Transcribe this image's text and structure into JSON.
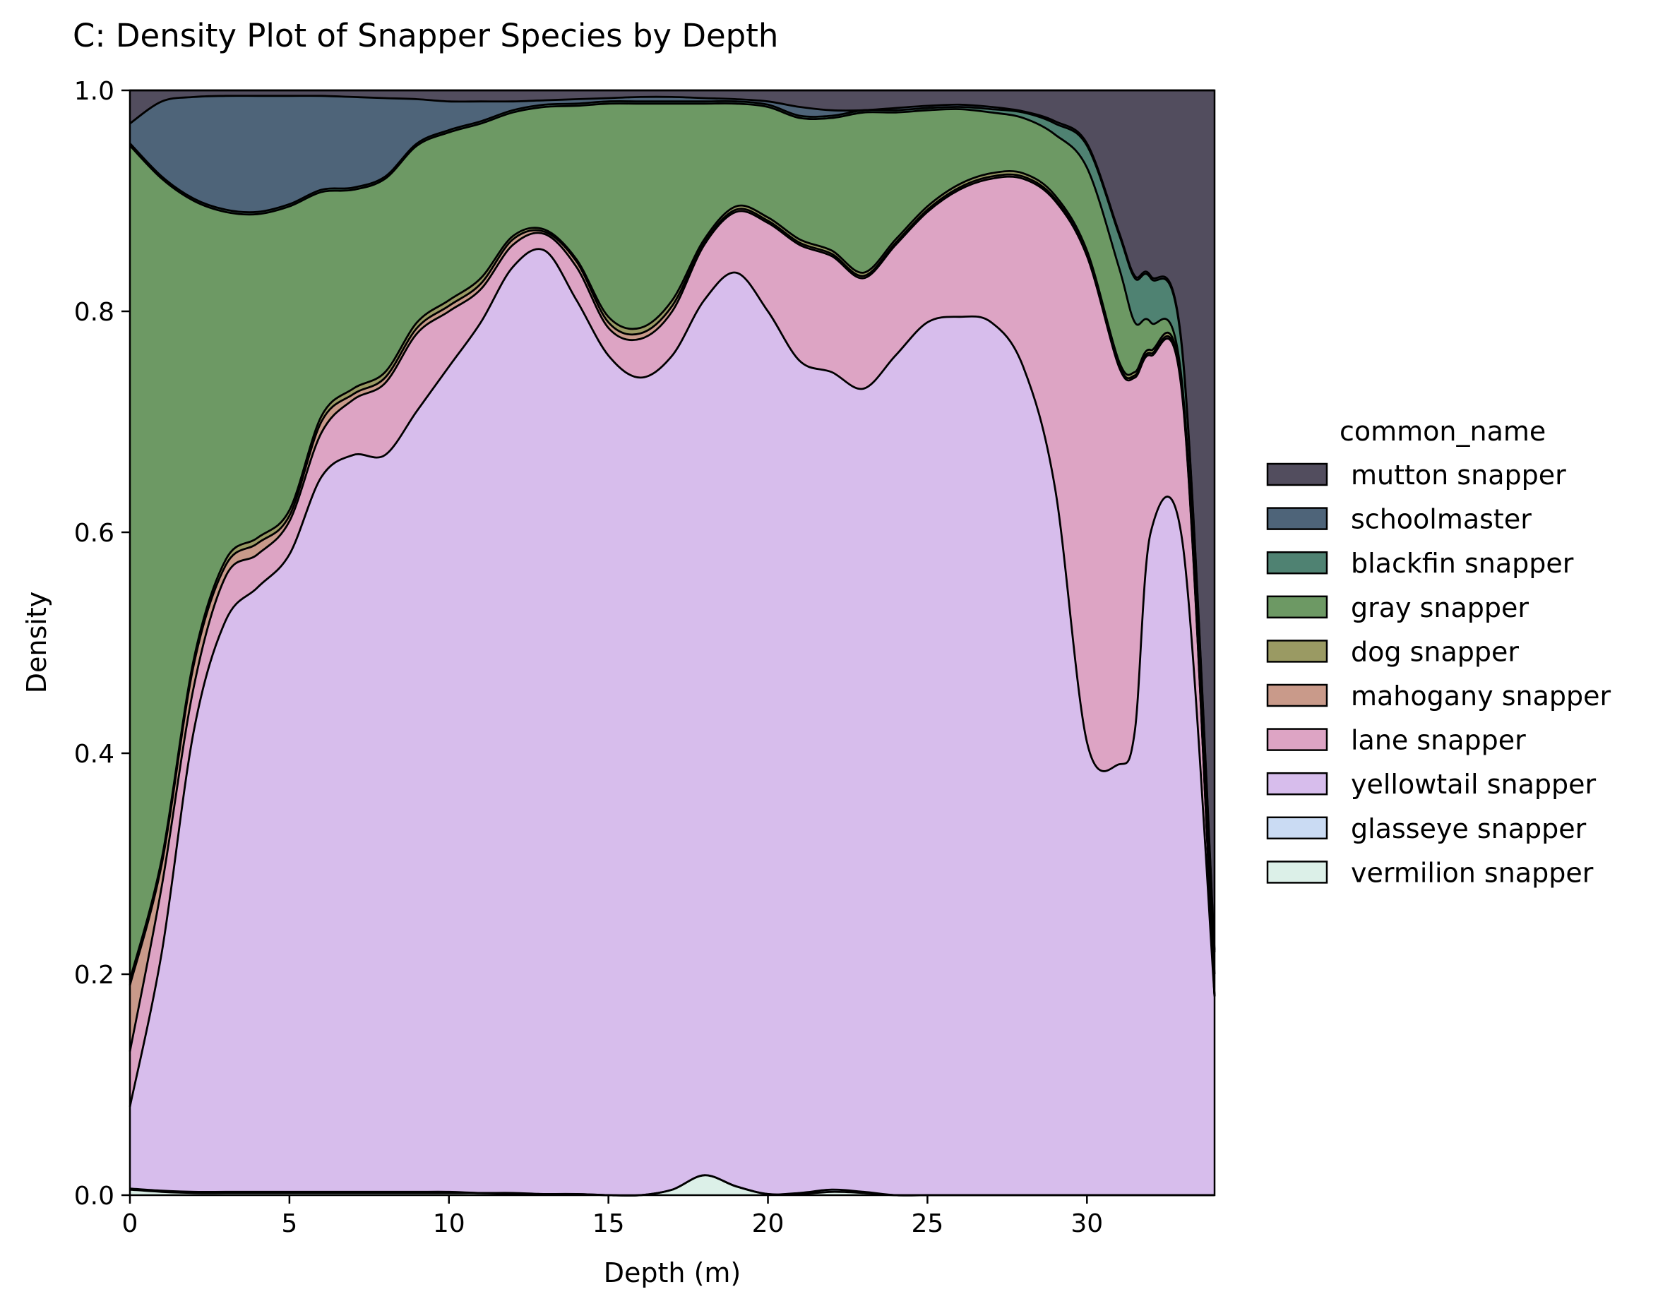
{
  "chart_data": {
    "type": "area",
    "stacked": true,
    "normalized": true,
    "title": "C: Density Plot of Snapper Species by Depth",
    "xlabel": "Depth (m)",
    "ylabel": "Density",
    "xlim": [
      0,
      34
    ],
    "ylim": [
      0,
      1
    ],
    "xticks": [
      0,
      5,
      10,
      15,
      20,
      25,
      30
    ],
    "yticks": [
      0.0,
      0.2,
      0.4,
      0.6,
      0.8,
      1.0
    ],
    "xtick_labels": [
      "0",
      "5",
      "10",
      "15",
      "20",
      "25",
      "30"
    ],
    "ytick_labels": [
      "0.0",
      "0.2",
      "0.4",
      "0.6",
      "0.8",
      "1.0"
    ],
    "grid": false,
    "legend": {
      "title": "common_name",
      "placement": "right"
    },
    "x": [
      0,
      1,
      2,
      3,
      4,
      5,
      6,
      7,
      8,
      9,
      10,
      11,
      12,
      13,
      14,
      15,
      16,
      17,
      18,
      19,
      20,
      21,
      22,
      23,
      24,
      25,
      26,
      27,
      28,
      29,
      30,
      31,
      31.5,
      32,
      33,
      34
    ],
    "series": [
      {
        "name": "vermilion snapper",
        "color": "#dcf0e8",
        "cumulative": [
          0.005,
          0.003,
          0.002,
          0.002,
          0.002,
          0.002,
          0.002,
          0.002,
          0.002,
          0.002,
          0.002,
          0.002,
          0.001,
          0.001,
          0.001,
          0.0,
          0.0,
          0.005,
          0.018,
          0.008,
          0.001,
          0.001,
          0.003,
          0.002,
          0.0,
          0.0,
          0.0,
          0.0,
          0.0,
          0.0,
          0.0,
          0.0,
          0.0,
          0.0,
          0.0,
          0.0
        ]
      },
      {
        "name": "glasseye snapper",
        "color": "#cadbf3",
        "cumulative": [
          0.006,
          0.004,
          0.003,
          0.003,
          0.003,
          0.003,
          0.003,
          0.003,
          0.003,
          0.003,
          0.003,
          0.002,
          0.002,
          0.001,
          0.001,
          0.0,
          0.0,
          0.005,
          0.018,
          0.008,
          0.001,
          0.002,
          0.005,
          0.003,
          0.0,
          0.0,
          0.0,
          0.0,
          0.0,
          0.0,
          0.0,
          0.0,
          0.0,
          0.0,
          0.0,
          0.0
        ]
      },
      {
        "name": "yellowtail snapper",
        "color": "#d7bdec",
        "cumulative": [
          0.08,
          0.22,
          0.42,
          0.52,
          0.55,
          0.58,
          0.65,
          0.67,
          0.67,
          0.71,
          0.75,
          0.79,
          0.84,
          0.855,
          0.81,
          0.76,
          0.74,
          0.76,
          0.81,
          0.835,
          0.8,
          0.755,
          0.745,
          0.73,
          0.76,
          0.79,
          0.795,
          0.79,
          0.75,
          0.64,
          0.41,
          0.39,
          0.42,
          0.6,
          0.59,
          0.18
        ]
      },
      {
        "name": "lane snapper",
        "color": "#dda4c4",
        "cumulative": [
          0.13,
          0.28,
          0.46,
          0.56,
          0.58,
          0.61,
          0.69,
          0.72,
          0.735,
          0.78,
          0.8,
          0.82,
          0.86,
          0.87,
          0.84,
          0.785,
          0.775,
          0.8,
          0.86,
          0.89,
          0.88,
          0.86,
          0.85,
          0.83,
          0.86,
          0.89,
          0.91,
          0.92,
          0.92,
          0.9,
          0.85,
          0.75,
          0.74,
          0.76,
          0.72,
          0.18
        ]
      },
      {
        "name": "mahogany snapper",
        "color": "#c99a8a",
        "cumulative": [
          0.19,
          0.3,
          0.48,
          0.57,
          0.59,
          0.615,
          0.7,
          0.725,
          0.74,
          0.785,
          0.805,
          0.825,
          0.865,
          0.872,
          0.845,
          0.79,
          0.78,
          0.805,
          0.862,
          0.892,
          0.882,
          0.862,
          0.852,
          0.832,
          0.862,
          0.892,
          0.912,
          0.922,
          0.922,
          0.902,
          0.852,
          0.752,
          0.742,
          0.762,
          0.722,
          0.18
        ]
      },
      {
        "name": "dog snapper",
        "color": "#9a9a63",
        "cumulative": [
          0.195,
          0.305,
          0.485,
          0.575,
          0.595,
          0.62,
          0.705,
          0.73,
          0.745,
          0.79,
          0.81,
          0.83,
          0.868,
          0.874,
          0.847,
          0.795,
          0.785,
          0.81,
          0.865,
          0.895,
          0.885,
          0.865,
          0.855,
          0.835,
          0.865,
          0.895,
          0.915,
          0.925,
          0.925,
          0.905,
          0.855,
          0.755,
          0.745,
          0.765,
          0.725,
          0.18
        ]
      },
      {
        "name": "gray snapper",
        "color": "#6d9964",
        "cumulative": [
          0.95,
          0.92,
          0.9,
          0.89,
          0.888,
          0.895,
          0.908,
          0.91,
          0.92,
          0.95,
          0.962,
          0.97,
          0.98,
          0.985,
          0.986,
          0.988,
          0.988,
          0.988,
          0.988,
          0.988,
          0.985,
          0.975,
          0.975,
          0.98,
          0.98,
          0.982,
          0.983,
          0.98,
          0.975,
          0.96,
          0.93,
          0.84,
          0.79,
          0.79,
          0.73,
          0.2
        ]
      },
      {
        "name": "blackfin snapper",
        "color": "#4f8272",
        "cumulative": [
          0.952,
          0.922,
          0.902,
          0.892,
          0.89,
          0.897,
          0.91,
          0.912,
          0.922,
          0.952,
          0.964,
          0.972,
          0.982,
          0.987,
          0.988,
          0.99,
          0.99,
          0.99,
          0.99,
          0.99,
          0.987,
          0.977,
          0.977,
          0.982,
          0.982,
          0.984,
          0.985,
          0.983,
          0.98,
          0.97,
          0.95,
          0.87,
          0.83,
          0.83,
          0.76,
          0.22
        ]
      },
      {
        "name": "schoolmaster",
        "color": "#4e6479",
        "cumulative": [
          0.97,
          0.99,
          0.994,
          0.995,
          0.995,
          0.995,
          0.995,
          0.994,
          0.993,
          0.992,
          0.99,
          0.99,
          0.99,
          0.991,
          0.992,
          0.993,
          0.994,
          0.994,
          0.993,
          0.992,
          0.99,
          0.985,
          0.982,
          0.982,
          0.984,
          0.986,
          0.987,
          0.985,
          0.981,
          0.972,
          0.952,
          0.872,
          0.832,
          0.832,
          0.762,
          0.222
        ]
      },
      {
        "name": "mutton snapper",
        "color": "#524d5e",
        "cumulative": [
          1.0,
          1.0,
          1.0,
          1.0,
          1.0,
          1.0,
          1.0,
          1.0,
          1.0,
          1.0,
          1.0,
          1.0,
          1.0,
          1.0,
          1.0,
          1.0,
          1.0,
          1.0,
          1.0,
          1.0,
          1.0,
          1.0,
          1.0,
          1.0,
          1.0,
          1.0,
          1.0,
          1.0,
          1.0,
          1.0,
          1.0,
          1.0,
          1.0,
          1.0,
          1.0,
          1.0
        ]
      }
    ]
  }
}
